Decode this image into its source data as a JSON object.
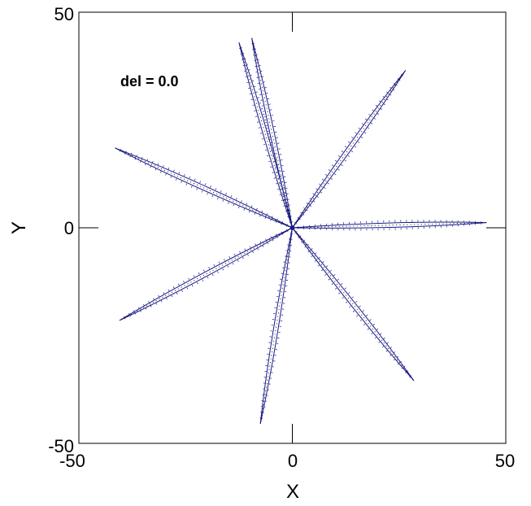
{
  "chart_data": {
    "type": "line",
    "title": "",
    "xlabel": "X",
    "ylabel": "Y",
    "xlim": [
      -50,
      50
    ],
    "ylim": [
      -50,
      50
    ],
    "x_ticks": [
      "-50",
      "0",
      "50"
    ],
    "y_ticks": [
      "50",
      "0",
      "-50"
    ],
    "annotation": "del = 0.0",
    "grid": false,
    "line_color": "#1a1a8c",
    "marker_color": "#000000",
    "series": [
      {
        "x": [
          0,
          45.5
        ],
        "y": [
          0,
          1.2
        ]
      },
      {
        "x": [
          0,
          26.5
        ],
        "y": [
          0,
          36.5
        ]
      },
      {
        "x": [
          0,
          -9.5
        ],
        "y": [
          0,
          44.0
        ]
      },
      {
        "x": [
          0,
          -12.5
        ],
        "y": [
          0,
          43.0
        ]
      },
      {
        "x": [
          0,
          -41.5
        ],
        "y": [
          0,
          18.5
        ]
      },
      {
        "x": [
          0,
          -40.5
        ],
        "y": [
          0,
          -21.5
        ]
      },
      {
        "x": [
          0,
          -7.5
        ],
        "y": [
          0,
          -45.5
        ]
      },
      {
        "x": [
          0,
          28.5
        ],
        "y": [
          0,
          -35.5
        ]
      }
    ]
  }
}
